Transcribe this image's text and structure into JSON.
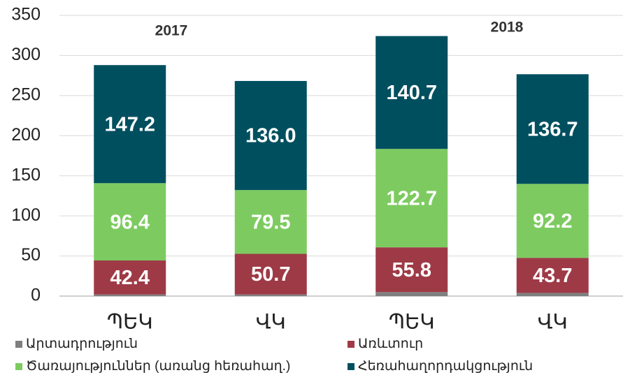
{
  "chart_data": {
    "type": "bar",
    "stacked": true,
    "categories": [
      "ՊԵԿ",
      "ՎԿ",
      "ՊԵԿ",
      "ՎԿ"
    ],
    "annotations": [
      "2017",
      "2018"
    ],
    "series": [
      {
        "name": "Արտադրություն",
        "color": "#7f7f7f",
        "values": [
          2,
          2,
          5,
          4
        ]
      },
      {
        "name": "Առևտուր",
        "color": "#9e3a46",
        "values": [
          42.4,
          50.7,
          55.8,
          43.7
        ],
        "value_labels": [
          "42.4",
          "50.7",
          "55.8",
          "43.7"
        ]
      },
      {
        "name": "Ծառայություններ (առանց հեռահաղ.)",
        "color": "#7dcb60",
        "values": [
          96.4,
          79.5,
          122.7,
          92.2
        ],
        "value_labels": [
          "96.4",
          "79.5",
          "122.7",
          "92.2"
        ]
      },
      {
        "name": "Հեռահաղորդակցություն",
        "color": "#004f5f",
        "values": [
          147.2,
          136.0,
          140.7,
          136.7
        ],
        "value_labels": [
          "147.2",
          "136.0",
          "140.7",
          "136.7"
        ]
      }
    ],
    "ylim": [
      0,
      350
    ],
    "yticks": [
      0,
      50,
      100,
      150,
      200,
      250,
      300,
      350
    ],
    "grid": true,
    "legend": "bottom"
  }
}
